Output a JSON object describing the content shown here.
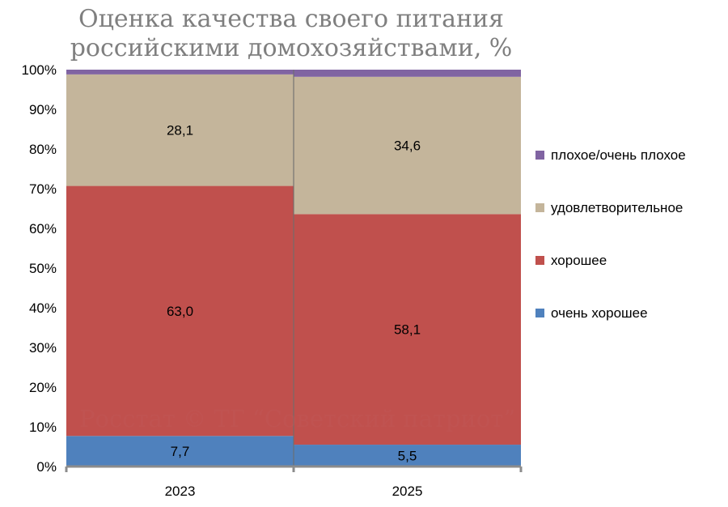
{
  "chart_data": {
    "type": "bar",
    "stacked": true,
    "percent": true,
    "title_lines": [
      "Оценка качества своего питания",
      "российскими домохозяйствами, %"
    ],
    "categories": [
      "2023",
      "2025"
    ],
    "series": [
      {
        "name": "очень хорошее",
        "values": [
          7.7,
          5.5
        ],
        "labels": [
          "7,7",
          "5,5"
        ],
        "color": "#4f81bd"
      },
      {
        "name": "хорошее",
        "values": [
          63.0,
          58.1
        ],
        "labels": [
          "63,0",
          "58,1"
        ],
        "color": "#c0504d"
      },
      {
        "name": "удовлетворительное",
        "values": [
          28.1,
          34.6
        ],
        "labels": [
          "28,1",
          "34,6"
        ],
        "color": "#c4b59b"
      },
      {
        "name": "плохое/очень плохое",
        "values": [
          1.2,
          1.8
        ],
        "labels": [
          "",
          ""
        ],
        "color": "#8064a2"
      }
    ],
    "y_ticks": [
      "0%",
      "10%",
      "20%",
      "30%",
      "40%",
      "50%",
      "60%",
      "70%",
      "80%",
      "90%",
      "100%"
    ],
    "ylim": [
      0,
      100
    ],
    "legend_position": "right",
    "legend_order": [
      "плохое/очень плохое",
      "удовлетворительное",
      "хорошее",
      "очень хорошее"
    ],
    "grid": false
  },
  "watermark": "Росстат © ТГ “Советский патриот”"
}
